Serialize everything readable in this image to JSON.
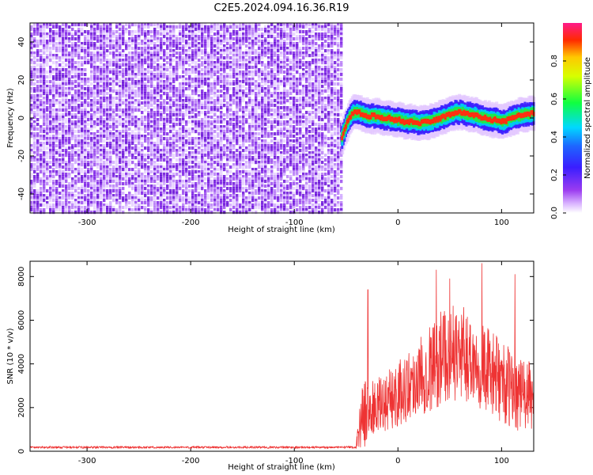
{
  "title": "C2E5.2024.094.16.36.R19",
  "chart_data": [
    {
      "type": "heatmap",
      "xlabel": "Height of straight line (km)",
      "ylabel": "Frequency (Hz)",
      "xlim": [
        -355,
        131
      ],
      "ylim": [
        -50,
        50
      ],
      "x_ticks": [
        -300,
        -200,
        -100,
        0,
        100
      ],
      "y_ticks": [
        -40,
        -20,
        0,
        20,
        40
      ],
      "colorbar": {
        "label": "Normalized spectral amplitude",
        "ticks": [
          0.0,
          0.2,
          0.4,
          0.6,
          0.8
        ],
        "range": [
          0,
          1
        ]
      },
      "noise_region_x": [
        -355,
        -55
      ],
      "ridge": {
        "x": [
          -55,
          -52,
          -48,
          -44,
          -40,
          -35,
          -30,
          -25,
          -20,
          -15,
          -10,
          -5,
          0,
          5,
          10,
          15,
          20,
          25,
          30,
          35,
          40,
          45,
          50,
          55,
          60,
          65,
          70,
          75,
          80,
          85,
          90,
          95,
          100,
          105,
          110,
          115,
          120,
          125,
          131
        ],
        "freq": [
          -10,
          -5,
          0,
          3,
          3,
          2,
          1,
          1,
          1,
          0,
          0,
          -1,
          -1,
          -2,
          -2,
          -2,
          -3,
          -2,
          -2,
          -1,
          0,
          1,
          2,
          3,
          3,
          2,
          2,
          1,
          0,
          0,
          -1,
          -1,
          -2,
          -1,
          0,
          1,
          2,
          2,
          3
        ]
      }
    },
    {
      "type": "line",
      "xlabel": "Height of straight line (km)",
      "ylabel": "SNR (10 * v/v)",
      "xlim": [
        -355,
        131
      ],
      "ylim": [
        0,
        8700
      ],
      "x_ticks": [
        -300,
        -200,
        -100,
        0,
        100
      ],
      "y_ticks": [
        0,
        2000,
        4000,
        6000,
        8000
      ],
      "color": "#ee3333",
      "baseline": {
        "x_range": [
          -355,
          -40
        ],
        "mean": 180,
        "spread": 100
      },
      "envelope": {
        "x": [
          -40,
          -38,
          -35,
          -30,
          -25,
          -20,
          -10,
          0,
          10,
          20,
          30,
          40,
          50,
          60,
          70,
          80,
          90,
          100,
          110,
          120,
          131
        ],
        "mean": [
          300,
          900,
          1600,
          1800,
          1900,
          2000,
          2300,
          2600,
          3000,
          3400,
          3800,
          4200,
          4500,
          4500,
          4300,
          4000,
          3600,
          3200,
          2800,
          2600,
          2400
        ],
        "spread": [
          200,
          700,
          1500,
          1500,
          1300,
          1300,
          1400,
          1500,
          1600,
          1800,
          2000,
          2200,
          2200,
          2200,
          2100,
          2100,
          1900,
          1900,
          1800,
          1700,
          1600
        ]
      },
      "peaks": [
        {
          "x": -29,
          "y": 7400
        },
        {
          "x": 37,
          "y": 8300
        },
        {
          "x": 50,
          "y": 7900
        },
        {
          "x": 81,
          "y": 8600
        },
        {
          "x": 113,
          "y": 8100
        }
      ]
    }
  ]
}
